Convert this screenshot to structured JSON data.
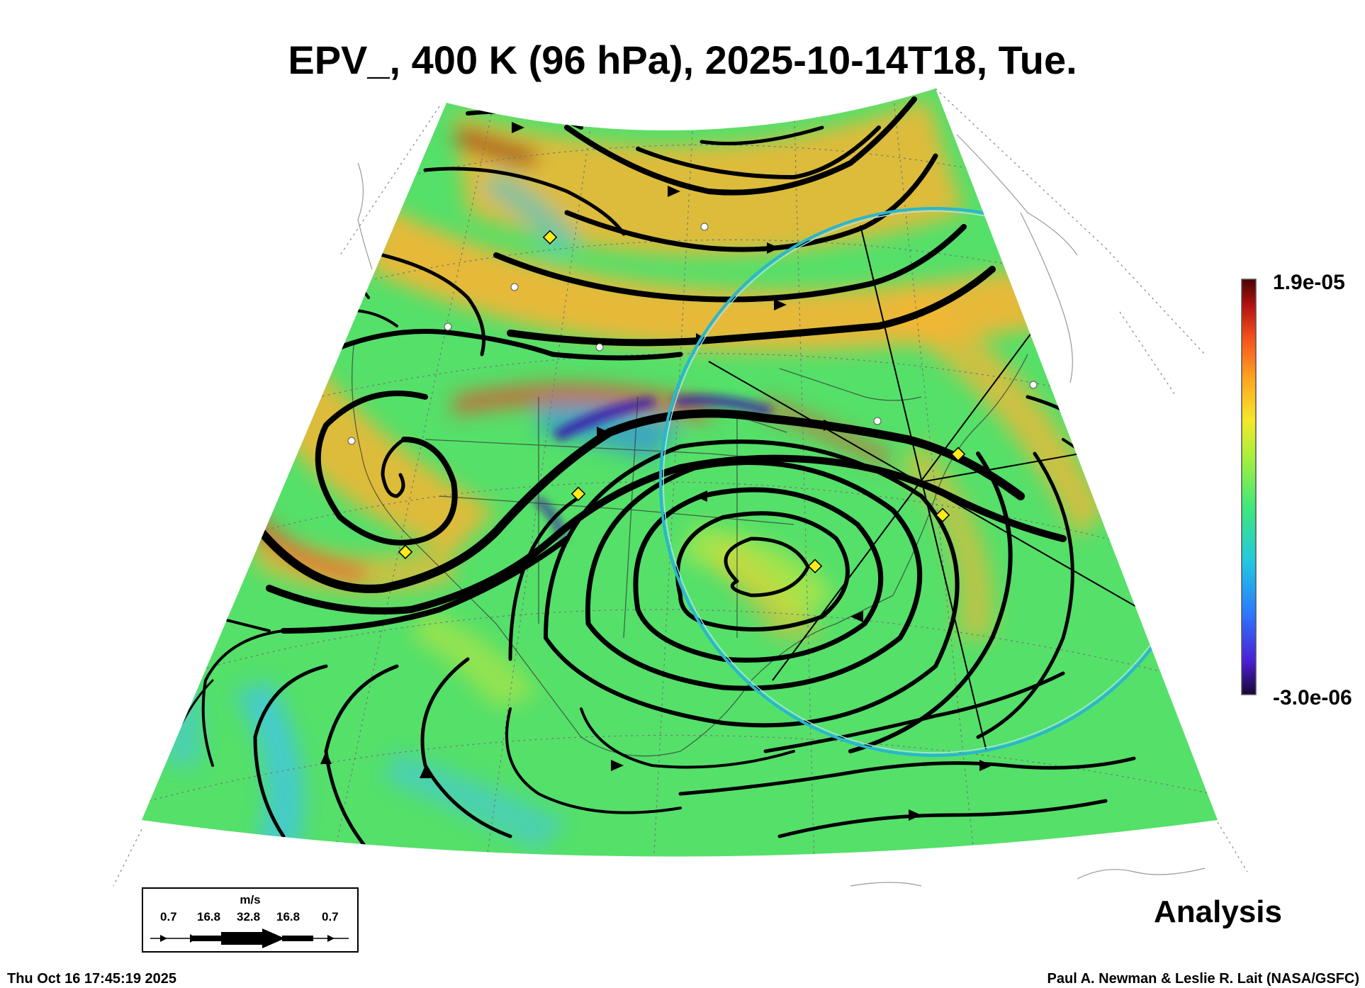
{
  "title": "EPV_, 400 K (96 hPa), 2025-10-14T18, Tue.",
  "colorbar": {
    "max_label": "1.9e-05",
    "min_label": "-3.0e-06",
    "colors": [
      "#2a0a4a",
      "#4b1fd6",
      "#2a7cff",
      "#21c8e0",
      "#3ee87a",
      "#a4f03c",
      "#f5e829",
      "#ffa51f",
      "#f4501a",
      "#b01010",
      "#5a0606"
    ]
  },
  "legend": {
    "units": "m/s",
    "values": [
      "0.7",
      "16.8",
      "32.8",
      "16.8",
      "0.7"
    ]
  },
  "analysis_label": "Analysis",
  "footer": {
    "timestamp": "Thu Oct 16 17:45:19 2025",
    "credit": "Paul A. Newman & Leslie R. Lait (NASA/GSFC)"
  },
  "map": {
    "field_colors": {
      "background": "#55e06a",
      "warm": "#f6b534",
      "hot": "#e8492a",
      "cool": "#42c7e0",
      "streamline": "#000000",
      "circle": "#2ab6d0",
      "marker_diamond": "#ffeb1a"
    }
  }
}
